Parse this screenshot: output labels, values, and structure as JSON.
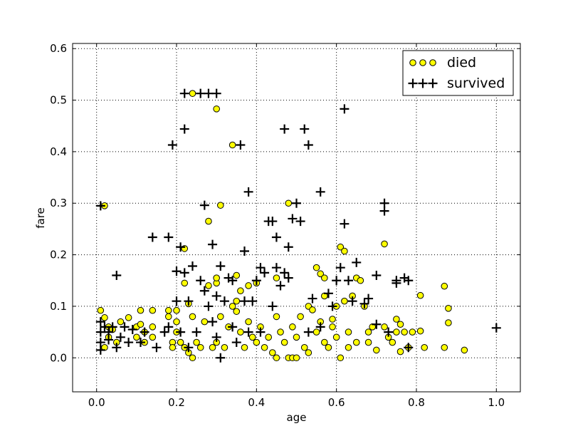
{
  "chart_data": {
    "type": "scatter",
    "title": "",
    "xlabel": "age",
    "ylabel": "fare",
    "xlim": [
      -0.06,
      1.06
    ],
    "ylim": [
      -0.066,
      0.61
    ],
    "xticks": [
      "0.0",
      "0.2",
      "0.4",
      "0.6",
      "0.8",
      "1.0"
    ],
    "xtick_values": [
      0.0,
      0.2,
      0.4,
      0.6,
      0.8,
      1.0
    ],
    "yticks": [
      "0.0",
      "0.1",
      "0.2",
      "0.3",
      "0.4",
      "0.5",
      "0.6"
    ],
    "ytick_values": [
      0.0,
      0.1,
      0.2,
      0.3,
      0.4,
      0.5,
      0.6
    ],
    "grid": true,
    "legend_position": "top-right",
    "series": [
      {
        "name": "died",
        "marker": "circle",
        "color": "#ffff00",
        "edge_color": "#000000",
        "points": [
          [
            0.02,
            0.295
          ],
          [
            0.01,
            0.092
          ],
          [
            0.02,
            0.078
          ],
          [
            0.03,
            0.06
          ],
          [
            0.04,
            0.055
          ],
          [
            0.05,
            0.03
          ],
          [
            0.03,
            0.04
          ],
          [
            0.02,
            0.02
          ],
          [
            0.06,
            0.07
          ],
          [
            0.08,
            0.078
          ],
          [
            0.1,
            0.06
          ],
          [
            0.1,
            0.04
          ],
          [
            0.11,
            0.092
          ],
          [
            0.11,
            0.065
          ],
          [
            0.12,
            0.05
          ],
          [
            0.12,
            0.03
          ],
          [
            0.14,
            0.092
          ],
          [
            0.14,
            0.06
          ],
          [
            0.14,
            0.04
          ],
          [
            0.18,
            0.092
          ],
          [
            0.18,
            0.08
          ],
          [
            0.19,
            0.03
          ],
          [
            0.19,
            0.02
          ],
          [
            0.2,
            0.092
          ],
          [
            0.2,
            0.07
          ],
          [
            0.2,
            0.05
          ],
          [
            0.21,
            0.03
          ],
          [
            0.22,
            0.212
          ],
          [
            0.22,
            0.145
          ],
          [
            0.22,
            0.02
          ],
          [
            0.23,
            0.01
          ],
          [
            0.23,
            0.105
          ],
          [
            0.24,
            0.513
          ],
          [
            0.24,
            0.08
          ],
          [
            0.24,
            0.0
          ],
          [
            0.25,
            0.03
          ],
          [
            0.26,
            0.02
          ],
          [
            0.27,
            0.07
          ],
          [
            0.28,
            0.265
          ],
          [
            0.28,
            0.14
          ],
          [
            0.29,
            0.02
          ],
          [
            0.3,
            0.483
          ],
          [
            0.3,
            0.145
          ],
          [
            0.3,
            0.155
          ],
          [
            0.3,
            0.03
          ],
          [
            0.31,
            0.296
          ],
          [
            0.31,
            0.08
          ],
          [
            0.32,
            0.02
          ],
          [
            0.33,
            0.06
          ],
          [
            0.34,
            0.413
          ],
          [
            0.34,
            0.1
          ],
          [
            0.35,
            0.16
          ],
          [
            0.35,
            0.11
          ],
          [
            0.35,
            0.09
          ],
          [
            0.36,
            0.13
          ],
          [
            0.36,
            0.05
          ],
          [
            0.37,
            0.02
          ],
          [
            0.38,
            0.14
          ],
          [
            0.38,
            0.07
          ],
          [
            0.39,
            0.04
          ],
          [
            0.4,
            0.145
          ],
          [
            0.4,
            0.03
          ],
          [
            0.41,
            0.06
          ],
          [
            0.42,
            0.02
          ],
          [
            0.43,
            0.04
          ],
          [
            0.44,
            0.01
          ],
          [
            0.45,
            0.155
          ],
          [
            0.45,
            0.08
          ],
          [
            0.45,
            0.0
          ],
          [
            0.46,
            0.05
          ],
          [
            0.47,
            0.03
          ],
          [
            0.48,
            0.3
          ],
          [
            0.48,
            0.0
          ],
          [
            0.49,
            0.06
          ],
          [
            0.49,
            0.0
          ],
          [
            0.5,
            0.04
          ],
          [
            0.5,
            0.0
          ],
          [
            0.51,
            0.08
          ],
          [
            0.52,
            0.02
          ],
          [
            0.53,
            0.1
          ],
          [
            0.53,
            0.01
          ],
          [
            0.54,
            0.093
          ],
          [
            0.55,
            0.175
          ],
          [
            0.55,
            0.05
          ],
          [
            0.56,
            0.163
          ],
          [
            0.56,
            0.07
          ],
          [
            0.57,
            0.155
          ],
          [
            0.57,
            0.12
          ],
          [
            0.57,
            0.03
          ],
          [
            0.58,
            0.02
          ],
          [
            0.59,
            0.075
          ],
          [
            0.59,
            0.06
          ],
          [
            0.6,
            0.1
          ],
          [
            0.6,
            0.04
          ],
          [
            0.61,
            0.215
          ],
          [
            0.61,
            0.0
          ],
          [
            0.62,
            0.207
          ],
          [
            0.62,
            0.11
          ],
          [
            0.63,
            0.05
          ],
          [
            0.63,
            0.02
          ],
          [
            0.64,
            0.12
          ],
          [
            0.65,
            0.155
          ],
          [
            0.65,
            0.03
          ],
          [
            0.66,
            0.15
          ],
          [
            0.67,
            0.1
          ],
          [
            0.68,
            0.05
          ],
          [
            0.68,
            0.03
          ],
          [
            0.69,
            0.06
          ],
          [
            0.7,
            0.015
          ],
          [
            0.72,
            0.221
          ],
          [
            0.72,
            0.06
          ],
          [
            0.73,
            0.04
          ],
          [
            0.74,
            0.03
          ],
          [
            0.75,
            0.075
          ],
          [
            0.75,
            0.05
          ],
          [
            0.76,
            0.065
          ],
          [
            0.76,
            0.012
          ],
          [
            0.77,
            0.05
          ],
          [
            0.78,
            0.02
          ],
          [
            0.79,
            0.05
          ],
          [
            0.81,
            0.121
          ],
          [
            0.81,
            0.052
          ],
          [
            0.82,
            0.02
          ],
          [
            0.87,
            0.139
          ],
          [
            0.88,
            0.096
          ],
          [
            0.88,
            0.068
          ],
          [
            0.87,
            0.02
          ],
          [
            0.92,
            0.015
          ]
        ]
      },
      {
        "name": "survived",
        "marker": "plus",
        "color": "#000000",
        "points": [
          [
            0.01,
            0.295
          ],
          [
            0.01,
            0.07
          ],
          [
            0.01,
            0.05
          ],
          [
            0.01,
            0.03
          ],
          [
            0.01,
            0.015
          ],
          [
            0.02,
            0.06
          ],
          [
            0.03,
            0.05
          ],
          [
            0.03,
            0.035
          ],
          [
            0.04,
            0.06
          ],
          [
            0.05,
            0.16
          ],
          [
            0.05,
            0.02
          ],
          [
            0.06,
            0.04
          ],
          [
            0.07,
            0.06
          ],
          [
            0.08,
            0.03
          ],
          [
            0.09,
            0.055
          ],
          [
            0.11,
            0.03
          ],
          [
            0.12,
            0.05
          ],
          [
            0.14,
            0.234
          ],
          [
            0.15,
            0.02
          ],
          [
            0.17,
            0.05
          ],
          [
            0.18,
            0.234
          ],
          [
            0.18,
            0.06
          ],
          [
            0.19,
            0.413
          ],
          [
            0.2,
            0.168
          ],
          [
            0.2,
            0.11
          ],
          [
            0.21,
            0.215
          ],
          [
            0.21,
            0.05
          ],
          [
            0.22,
            0.444
          ],
          [
            0.22,
            0.513
          ],
          [
            0.22,
            0.165
          ],
          [
            0.23,
            0.11
          ],
          [
            0.23,
            0.02
          ],
          [
            0.24,
            0.178
          ],
          [
            0.25,
            0.05
          ],
          [
            0.26,
            0.513
          ],
          [
            0.26,
            0.15
          ],
          [
            0.27,
            0.296
          ],
          [
            0.27,
            0.13
          ],
          [
            0.28,
            0.513
          ],
          [
            0.28,
            0.1
          ],
          [
            0.29,
            0.22
          ],
          [
            0.29,
            0.07
          ],
          [
            0.3,
            0.513
          ],
          [
            0.3,
            0.12
          ],
          [
            0.3,
            0.04
          ],
          [
            0.31,
            0.178
          ],
          [
            0.31,
            0.0
          ],
          [
            0.32,
            0.11
          ],
          [
            0.33,
            0.155
          ],
          [
            0.34,
            0.15
          ],
          [
            0.34,
            0.06
          ],
          [
            0.35,
            0.03
          ],
          [
            0.36,
            0.413
          ],
          [
            0.37,
            0.207
          ],
          [
            0.37,
            0.11
          ],
          [
            0.38,
            0.322
          ],
          [
            0.38,
            0.05
          ],
          [
            0.39,
            0.11
          ],
          [
            0.4,
            0.15
          ],
          [
            0.41,
            0.175
          ],
          [
            0.41,
            0.05
          ],
          [
            0.42,
            0.165
          ],
          [
            0.43,
            0.265
          ],
          [
            0.44,
            0.265
          ],
          [
            0.44,
            0.1
          ],
          [
            0.45,
            0.234
          ],
          [
            0.45,
            0.175
          ],
          [
            0.46,
            0.14
          ],
          [
            0.47,
            0.444
          ],
          [
            0.47,
            0.165
          ],
          [
            0.48,
            0.155
          ],
          [
            0.48,
            0.215
          ],
          [
            0.49,
            0.27
          ],
          [
            0.5,
            0.3
          ],
          [
            0.51,
            0.265
          ],
          [
            0.52,
            0.444
          ],
          [
            0.53,
            0.413
          ],
          [
            0.53,
            0.05
          ],
          [
            0.54,
            0.115
          ],
          [
            0.56,
            0.322
          ],
          [
            0.56,
            0.06
          ],
          [
            0.58,
            0.125
          ],
          [
            0.59,
            0.1
          ],
          [
            0.6,
            0.15
          ],
          [
            0.61,
            0.175
          ],
          [
            0.62,
            0.483
          ],
          [
            0.62,
            0.26
          ],
          [
            0.63,
            0.15
          ],
          [
            0.64,
            0.11
          ],
          [
            0.65,
            0.185
          ],
          [
            0.67,
            0.105
          ],
          [
            0.68,
            0.115
          ],
          [
            0.7,
            0.16
          ],
          [
            0.7,
            0.065
          ],
          [
            0.72,
            0.3
          ],
          [
            0.72,
            0.285
          ],
          [
            0.73,
            0.05
          ],
          [
            0.75,
            0.15
          ],
          [
            0.75,
            0.145
          ],
          [
            0.77,
            0.155
          ],
          [
            0.78,
            0.15
          ],
          [
            0.78,
            0.02
          ],
          [
            1.0,
            0.058
          ]
        ]
      }
    ]
  },
  "legend": {
    "died_label": "died",
    "survived_label": "survived"
  }
}
